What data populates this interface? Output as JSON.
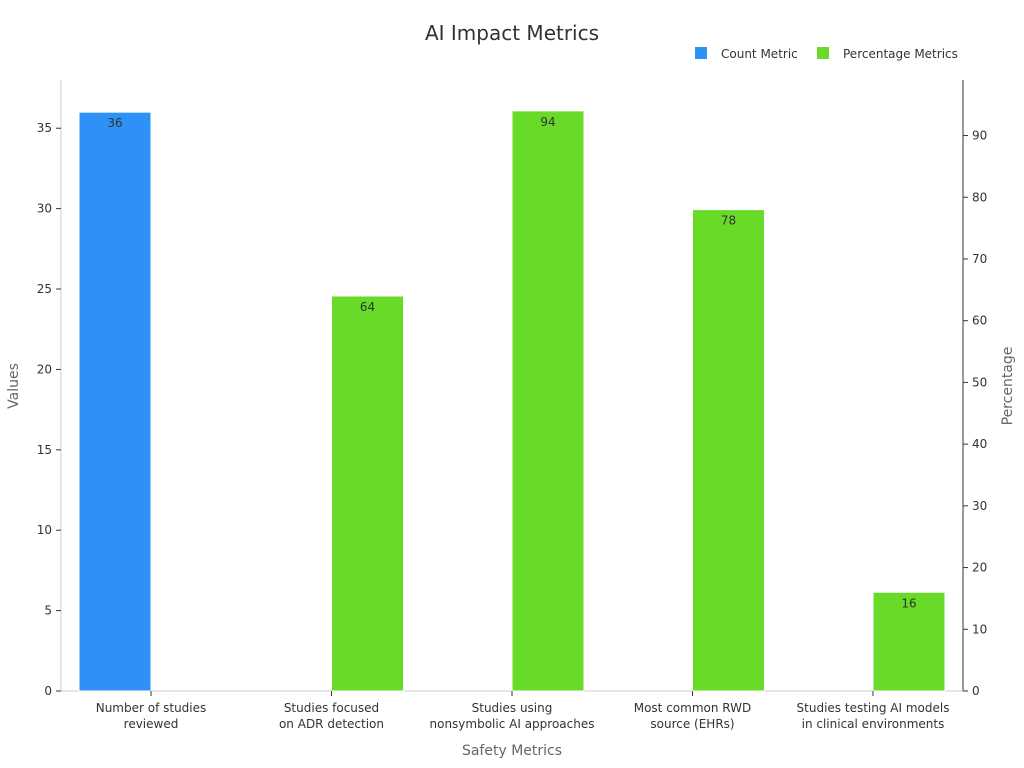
{
  "chart_data": {
    "type": "bar",
    "title": "AI Impact Metrics",
    "xlabel": "Safety Metrics",
    "ylabel": "Values",
    "y2label": "Percentage",
    "ylim": [
      0,
      38
    ],
    "y2lim": [
      0,
      99
    ],
    "yticks": [
      0,
      5,
      10,
      15,
      20,
      25,
      30,
      35
    ],
    "y2ticks": [
      0,
      10,
      20,
      30,
      40,
      50,
      60,
      70,
      80,
      90
    ],
    "legend_position": "top-right",
    "categories": [
      [
        "Number of studies",
        "reviewed"
      ],
      [
        "Studies focused",
        "on ADR detection"
      ],
      [
        "Studies using",
        "nonsymbolic AI approaches"
      ],
      [
        "Most common RWD",
        "source (EHRs)"
      ],
      [
        "Studies testing AI models",
        "in clinical environments"
      ]
    ],
    "series": [
      {
        "name": "Count Metric",
        "axis": "left",
        "color": "#2e91f8",
        "values": [
          36,
          null,
          null,
          null,
          null
        ]
      },
      {
        "name": "Percentage Metrics",
        "axis": "right",
        "color": "#67db28",
        "values": [
          null,
          64,
          94,
          78,
          16
        ]
      }
    ]
  }
}
